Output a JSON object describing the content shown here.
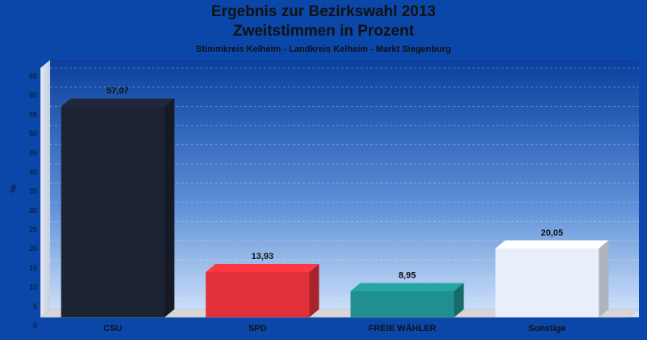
{
  "chart_data": {
    "type": "bar",
    "title": "Ergebnis zur Bezirkswahl 2013",
    "title_line2": "Zweitstimmen in Prozent",
    "subtitle": "Stimmkreis Kelheim - Landkreis Kelheim - Markt Siegenburg",
    "xlabel": "",
    "ylabel": "%",
    "ylim": [
      0,
      65
    ],
    "yticks": [
      0,
      5,
      10,
      15,
      20,
      25,
      30,
      35,
      40,
      45,
      50,
      55,
      60,
      65
    ],
    "categories": [
      "CSU",
      "SPD",
      "FREIE WÄHLER",
      "Sonstige"
    ],
    "values": [
      57.07,
      13.93,
      8.95,
      20.05
    ],
    "value_labels": [
      "57,07",
      "13,93",
      "8,95",
      "20,05"
    ],
    "colors": [
      "#1c2333",
      "#e0303a",
      "#1f8f8f",
      "#e8eefa"
    ],
    "grid": true,
    "legend": "none"
  }
}
